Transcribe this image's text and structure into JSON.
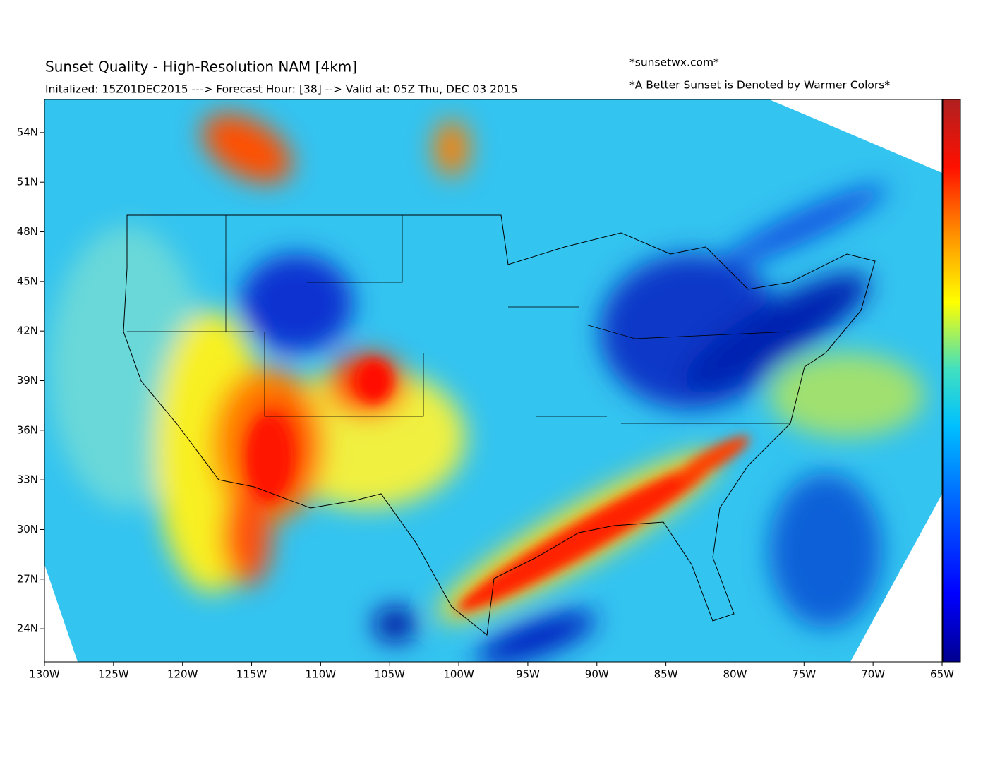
{
  "title": "Sunset Quality - High-Resolution NAM [4km]",
  "subtitle": "Initalized: 15Z01DEC2015 ---> Forecast Hour: [38] --> Valid at: 05Z Thu, DEC 03 2015",
  "credit": "*sunsetwx.com*",
  "note": "*A Better Sunset is Denoted by Warmer Colors*",
  "map": {
    "xlim": [
      -130,
      -65
    ],
    "ylim": [
      22,
      56
    ],
    "xticks": [
      {
        "value": -130,
        "label": "130W"
      },
      {
        "value": -125,
        "label": "125W"
      },
      {
        "value": -120,
        "label": "120W"
      },
      {
        "value": -115,
        "label": "115W"
      },
      {
        "value": -110,
        "label": "110W"
      },
      {
        "value": -105,
        "label": "105W"
      },
      {
        "value": -100,
        "label": "100W"
      },
      {
        "value": -95,
        "label": "95W"
      },
      {
        "value": -90,
        "label": "90W"
      },
      {
        "value": -85,
        "label": "85W"
      },
      {
        "value": -80,
        "label": "80W"
      },
      {
        "value": -75,
        "label": "75W"
      },
      {
        "value": -70,
        "label": "70W"
      },
      {
        "value": -65,
        "label": "65W"
      }
    ],
    "yticks": [
      {
        "value": 24,
        "label": "24N"
      },
      {
        "value": 27,
        "label": "27N"
      },
      {
        "value": 30,
        "label": "30N"
      },
      {
        "value": 33,
        "label": "33N"
      },
      {
        "value": 36,
        "label": "36N"
      },
      {
        "value": 39,
        "label": "39N"
      },
      {
        "value": 42,
        "label": "42N"
      },
      {
        "value": 45,
        "label": "45N"
      },
      {
        "value": 48,
        "label": "48N"
      },
      {
        "value": 51,
        "label": "51N"
      },
      {
        "value": 54,
        "label": "54N"
      }
    ]
  }
}
